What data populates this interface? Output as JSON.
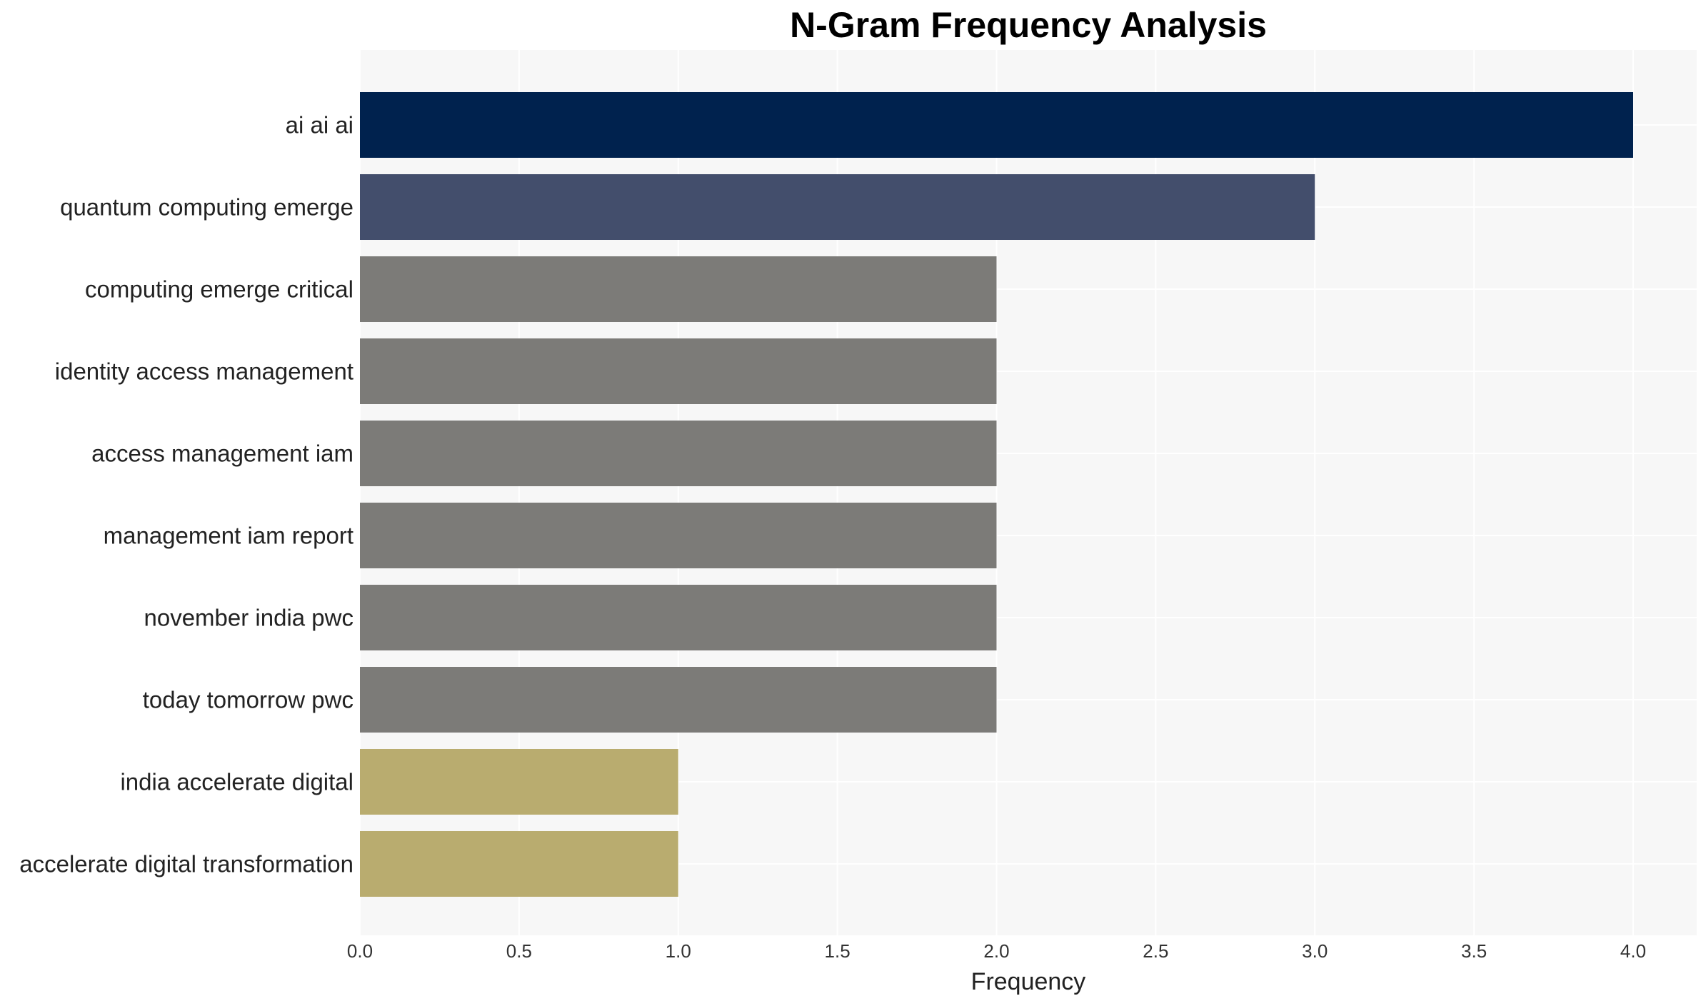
{
  "chart_data": {
    "type": "bar",
    "orientation": "horizontal",
    "title": "N-Gram Frequency Analysis",
    "xlabel": "Frequency",
    "ylabel": "",
    "xlim": [
      0,
      4.2
    ],
    "x_ticks": [
      "0.0",
      "0.5",
      "1.0",
      "1.5",
      "2.0",
      "2.5",
      "3.0",
      "3.5",
      "4.0"
    ],
    "grid": true,
    "categories": [
      "ai ai ai",
      "quantum computing emerge",
      "computing emerge critical",
      "identity access management",
      "access management iam",
      "management iam report",
      "november india pwc",
      "today tomorrow pwc",
      "india accelerate digital",
      "accelerate digital transformation"
    ],
    "values": [
      4,
      3,
      2,
      2,
      2,
      2,
      2,
      2,
      1,
      1
    ],
    "colors": [
      "#00224e",
      "#434e6c",
      "#7c7b78",
      "#7c7b78",
      "#7c7b78",
      "#7c7b78",
      "#7c7b78",
      "#7c7b78",
      "#b9ac6f",
      "#b9ac6f"
    ],
    "background_color": "#f7f7f7",
    "grid_color": "#ffffff"
  }
}
